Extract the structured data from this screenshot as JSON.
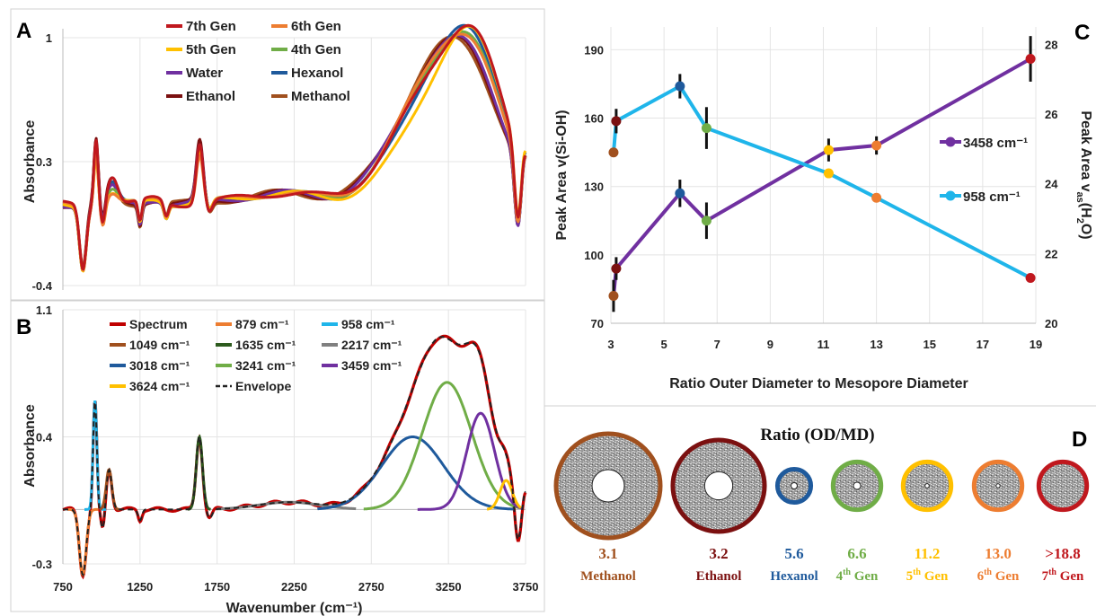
{
  "colors": {
    "gen7": "#c0181e",
    "gen6": "#ed7d31",
    "gen5": "#ffc000",
    "gen4": "#70ad47",
    "water": "#7030a0",
    "hexanol": "#1f5a9c",
    "ethanol": "#7b1010",
    "methanol": "#a0501e",
    "spectrum": "#c00000",
    "c879": "#ed7d31",
    "c958": "#1fb5ea",
    "c1049": "#a0501e",
    "c1635": "#2d5b1e",
    "c2217": "#808080",
    "c3018": "#1f5a9c",
    "c3241": "#70ad47",
    "c3459": "#7030a0",
    "c3624": "#ffc000",
    "envelope": "#222222",
    "s958": "#1fb5ea",
    "s3458": "#7030a0"
  },
  "panels": {
    "A": "A",
    "B": "B",
    "C": "C",
    "D": "D"
  },
  "chart_data": [
    {
      "panel": "A",
      "type": "line",
      "xlabel": "",
      "ylabel": "Absorbance",
      "xlim": [
        750,
        3750
      ],
      "y_tick_labels": [
        "1",
        "0.3",
        "-0.4"
      ],
      "series": [
        {
          "name": "7th Gen",
          "color_key": "gen7",
          "peaks": {
            "3450": 1.08,
            "1637": 0.38,
            "970": 0.6
          }
        },
        {
          "name": "6th Gen",
          "color_key": "gen6",
          "peaks": {
            "3250": 1.0,
            "1637": 0.35
          }
        },
        {
          "name": "5th Gen",
          "color_key": "gen5",
          "peaks": {
            "3400": 1.0,
            "1637": 0.34
          }
        },
        {
          "name": "4th Gen",
          "color_key": "gen4",
          "peaks": {
            "3250": 1.0,
            "1637": 0.35
          }
        },
        {
          "name": "Water",
          "color_key": "water",
          "peaks": {
            "3250": 1.0,
            "1637": 0.36
          }
        },
        {
          "name": "Hexanol",
          "color_key": "hexanol",
          "peaks": {
            "3250": 1.0,
            "1637": 0.35
          }
        },
        {
          "name": "Ethanol",
          "color_key": "ethanol",
          "peaks": {
            "3250": 1.0,
            "1637": 0.36
          }
        },
        {
          "name": "Methanol",
          "color_key": "methanol",
          "peaks": {
            "3250": 1.0,
            "1637": 0.35
          }
        }
      ]
    },
    {
      "panel": "B",
      "type": "line",
      "xlabel": "Wavenumber (cm⁻¹)",
      "ylabel": "Absorbance",
      "xlim": [
        750,
        3750
      ],
      "ylim": [
        -0.3,
        1.1
      ],
      "x_tick_labels": [
        "750",
        "1250",
        "1750",
        "2250",
        "2750",
        "3250",
        "3750"
      ],
      "y_tick_labels": [
        "1.1",
        "0.4",
        "-0.3"
      ],
      "series": [
        {
          "name": "Spectrum",
          "color_key": "spectrum"
        },
        {
          "name": "879 cm⁻¹",
          "color_key": "c879",
          "center": 879,
          "height": -0.28
        },
        {
          "name": "958 cm⁻¹",
          "color_key": "c958",
          "center": 958,
          "height": 0.6
        },
        {
          "name": "1049 cm⁻¹",
          "color_key": "c1049",
          "center": 1049,
          "height": 0.22
        },
        {
          "name": "1635 cm⁻¹",
          "color_key": "c1635",
          "center": 1635,
          "height": 0.4
        },
        {
          "name": "2217 cm⁻¹",
          "color_key": "c2217",
          "center": 2217,
          "height": 0.05
        },
        {
          "name": "3018 cm⁻¹",
          "color_key": "c3018",
          "center": 3018,
          "height": 0.4
        },
        {
          "name": "3241 cm⁻¹",
          "color_key": "c3241",
          "center": 3241,
          "height": 0.7
        },
        {
          "name": "3459 cm⁻¹",
          "color_key": "c3459",
          "center": 3459,
          "height": 0.5
        },
        {
          "name": "3624 cm⁻¹",
          "color_key": "c3624",
          "center": 3624,
          "height": 0.15
        },
        {
          "name": "Envelope",
          "color_key": "envelope",
          "dashed": true
        }
      ]
    },
    {
      "panel": "C",
      "type": "scatter",
      "xlabel": "Ratio Outer Diameter to Mesopore Diameter",
      "ylabel": "Peak Area v(Si-OH)",
      "ylabel2_main": "Peak Area v",
      "ylabel2_sub": "as",
      "ylabel2_tail": "(H",
      "ylabel2_sub2": "2",
      "ylabel2_end": "O)",
      "xlim": [
        3,
        19
      ],
      "ylim": [
        70,
        200
      ],
      "y2lim": [
        20,
        28.5
      ],
      "x_ticks": [
        3,
        5,
        7,
        9,
        11,
        13,
        15,
        17,
        19
      ],
      "y_ticks": [
        70,
        100,
        130,
        160,
        190
      ],
      "y2_ticks": [
        20,
        22,
        24,
        26,
        28
      ],
      "series": [
        {
          "name": "3458 cm⁻¹",
          "axis": "left",
          "color_key": "s3458",
          "x": [
            3.1,
            3.2,
            5.6,
            6.6,
            11.2,
            13.0,
            18.8
          ],
          "y": [
            82,
            94,
            127,
            115,
            146,
            148,
            186
          ],
          "err": [
            7,
            5,
            6,
            8,
            5,
            4,
            10
          ],
          "marker_colors": [
            "methanol",
            "ethanol",
            "hexanol",
            "gen4",
            "gen5",
            "gen6",
            "gen7"
          ]
        },
        {
          "name": "958 cm⁻¹",
          "axis": "right",
          "color_key": "s958",
          "x": [
            3.1,
            3.2,
            5.6,
            6.6,
            11.2,
            13.0,
            18.8
          ],
          "y": [
            24.9,
            25.8,
            26.8,
            25.6,
            24.3,
            23.6,
            21.3
          ],
          "err": [
            0,
            0.35,
            0.35,
            0.6,
            0,
            0,
            0
          ],
          "marker_colors": [
            "methanol",
            "ethanol",
            "hexanol",
            "gen4",
            "gen5",
            "gen6",
            "gen7"
          ]
        }
      ]
    }
  ],
  "panel_d": {
    "title": "Ratio (OD/MD)",
    "items": [
      {
        "value": "3.1",
        "name": "Methanol",
        "color_key": "methanol",
        "outer": 1.0,
        "inner": 0.31
      },
      {
        "value": "3.2",
        "name": "Ethanol",
        "color_key": "ethanol",
        "outer": 0.88,
        "inner": 0.27
      },
      {
        "value": "5.6",
        "name": "Hexanol",
        "color_key": "hexanol",
        "outer": 0.32,
        "inner": 0.06
      },
      {
        "value": "6.6",
        "name_main": "4",
        "name_sup": "th",
        "name_tail": " Gen",
        "color_key": "gen4",
        "outer": 0.46,
        "inner": 0.07
      },
      {
        "value": "11.2",
        "name_main": "5",
        "name_sup": "th",
        "name_tail": " Gen",
        "color_key": "gen5",
        "outer": 0.46,
        "inner": 0.04
      },
      {
        "value": "13.0",
        "name_main": "6",
        "name_sup": "th",
        "name_tail": " Gen",
        "color_key": "gen6",
        "outer": 0.46,
        "inner": 0.035
      },
      {
        "value": ">18.8",
        "name_main": "7",
        "name_sup": "th",
        "name_tail": " Gen",
        "color_key": "gen7",
        "outer": 0.46,
        "inner": 0.0
      }
    ]
  }
}
